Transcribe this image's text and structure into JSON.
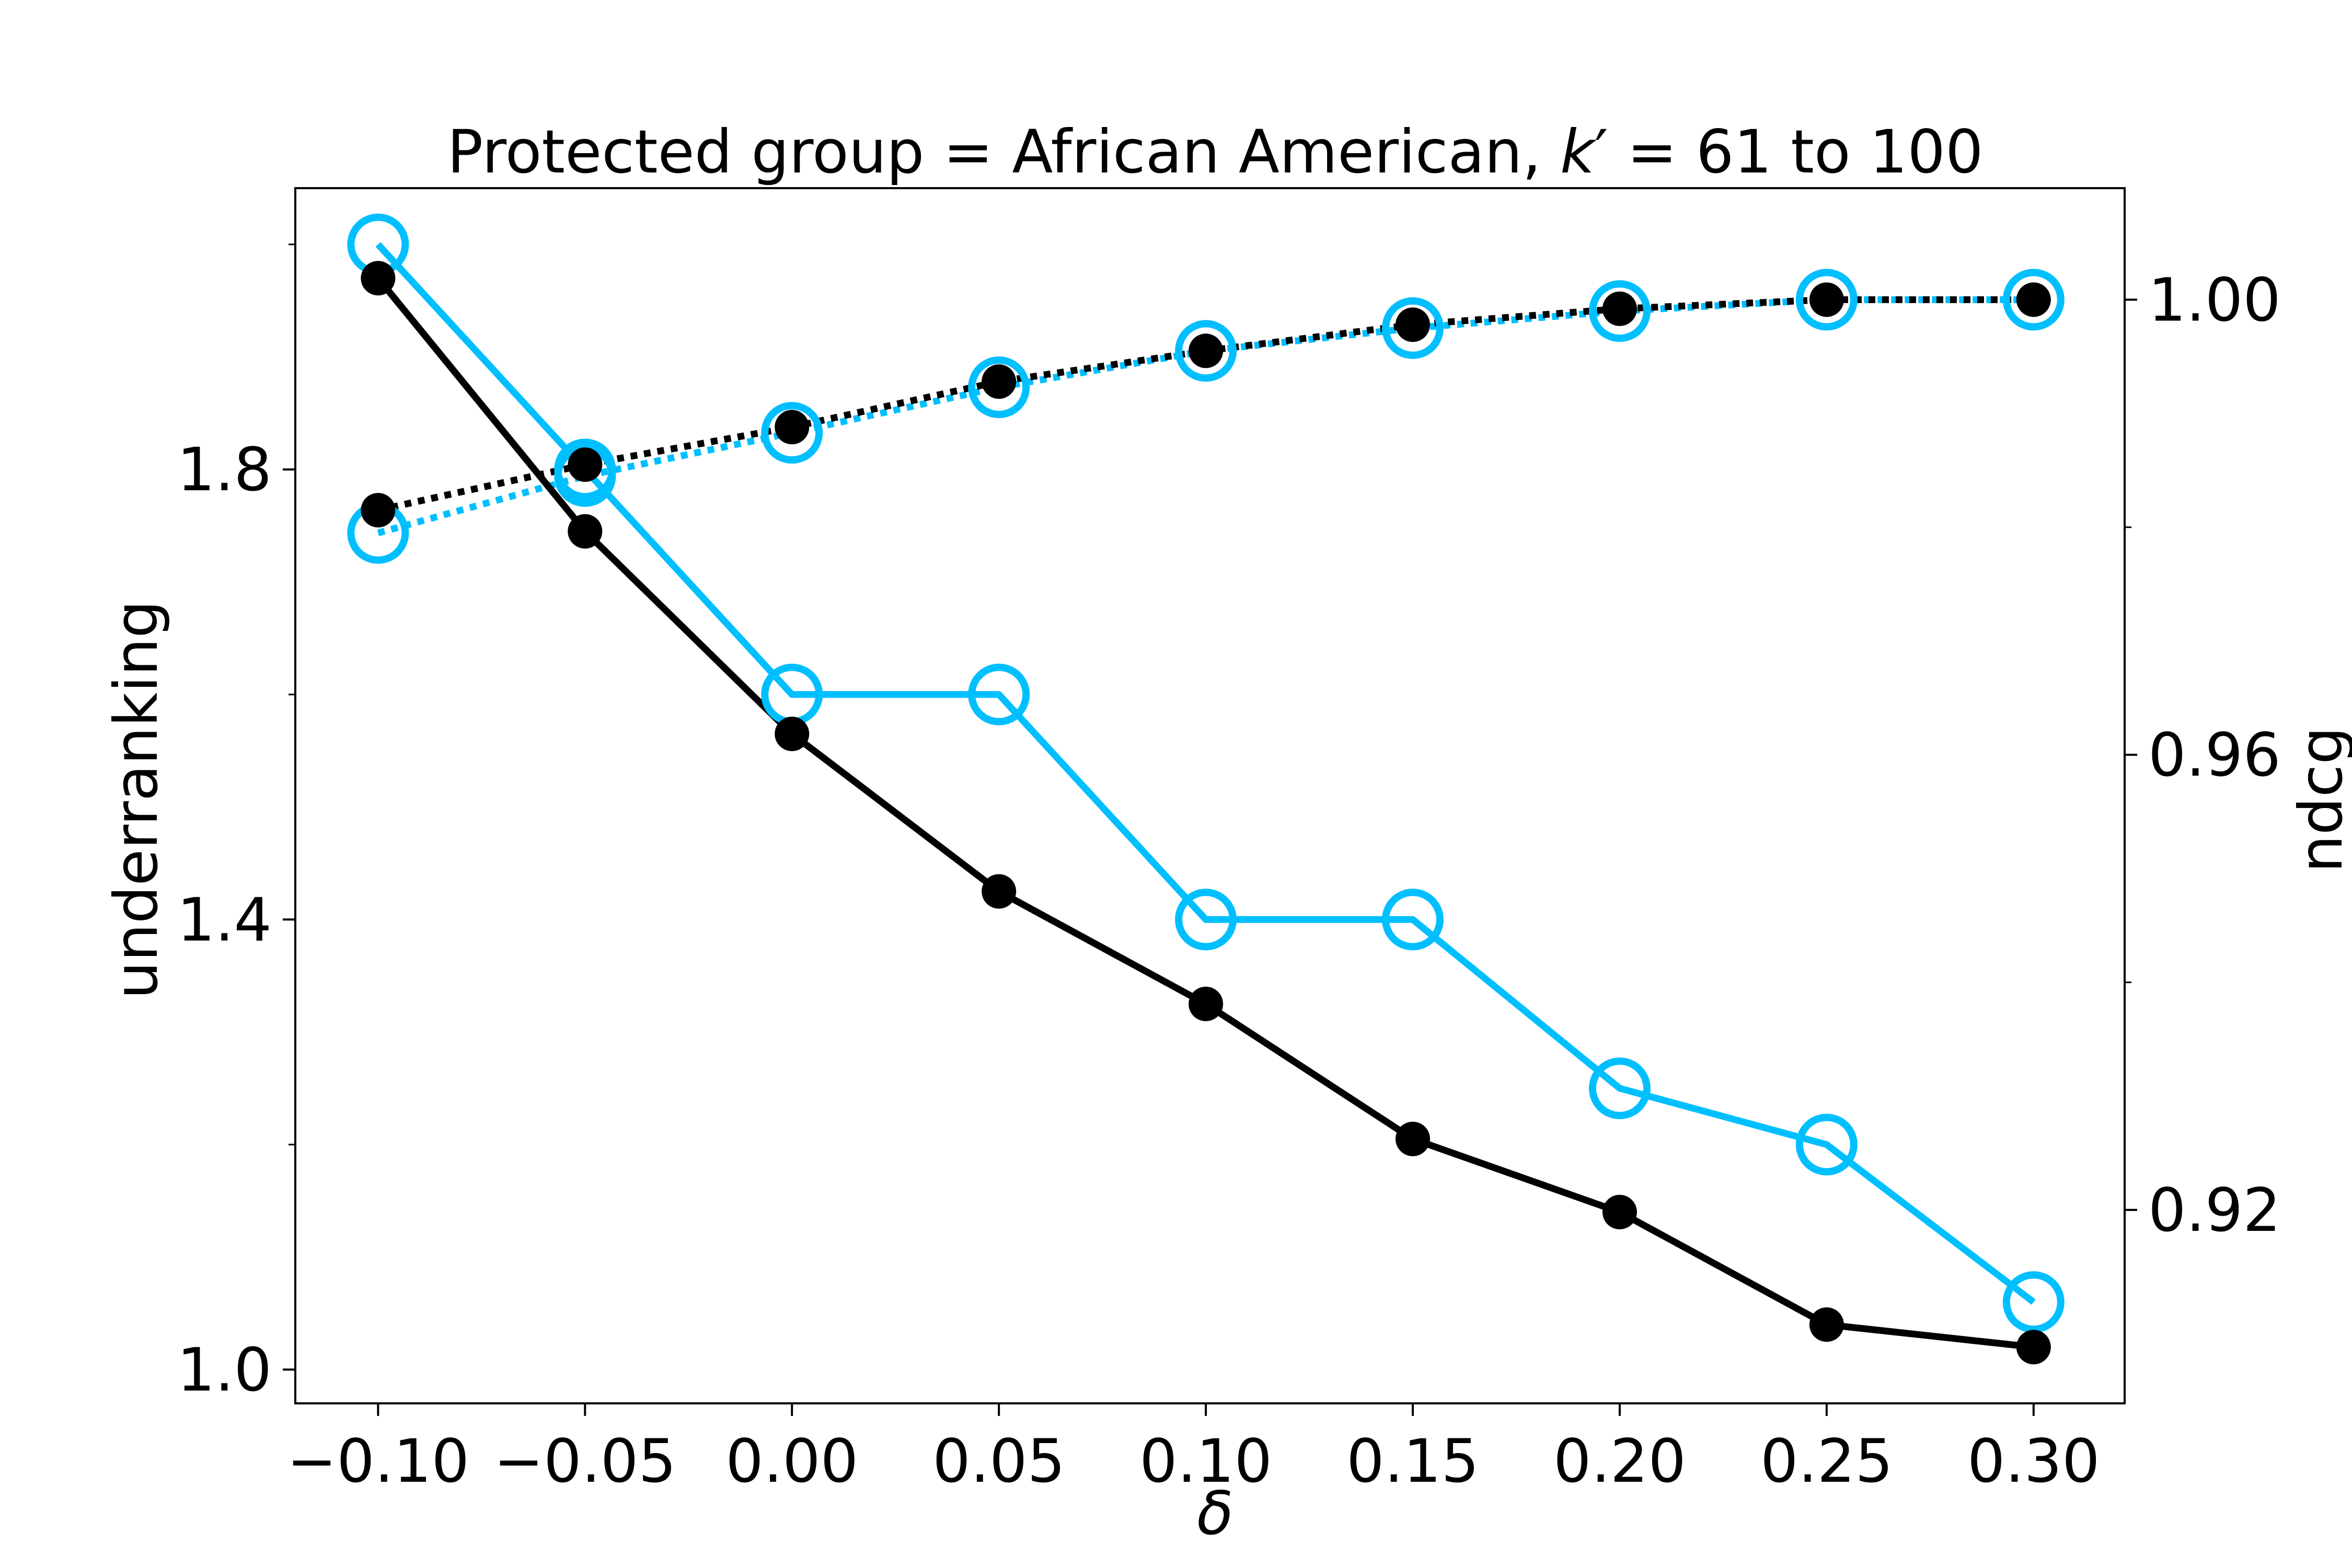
{
  "chart_data": {
    "type": "line",
    "title": "Protected group = African American, k′ = 61 to 100",
    "xlabel": "δ",
    "ylabel_left": "underranking",
    "ylabel_right": "ndcg",
    "x": [
      -0.1,
      -0.05,
      0.0,
      0.05,
      0.1,
      0.15,
      0.2,
      0.25,
      0.3
    ],
    "x_tick_labels": [
      "−0.10",
      "−0.05",
      "0.00",
      "0.05",
      "0.10",
      "0.15",
      "0.20",
      "0.25",
      "0.30"
    ],
    "xlim": [
      -0.12,
      0.322
    ],
    "left_axis": {
      "ylim": [
        0.97,
        2.05
      ],
      "major_ticks": [
        1.0,
        1.4,
        1.8
      ],
      "major_tick_labels": [
        "1.0",
        "1.4",
        "1.8"
      ],
      "minor_ticks": [
        1.2,
        1.6,
        2.0
      ]
    },
    "right_axis": {
      "ylim": [
        0.903,
        1.0098
      ],
      "major_ticks": [
        0.92,
        0.96,
        1.0
      ],
      "major_tick_labels": [
        "0.92",
        "0.96",
        "1.00"
      ],
      "minor_ticks": [
        0.94,
        0.98
      ]
    },
    "series": [
      {
        "axis": "left",
        "style": "solid",
        "marker": "filled-circle",
        "color": "#000000",
        "values": [
          1.97,
          1.745,
          1.565,
          1.425,
          1.325,
          1.205,
          1.14,
          1.04,
          1.02
        ]
      },
      {
        "axis": "left",
        "style": "solid",
        "marker": "open-circle",
        "color": "#00BFFF",
        "values": [
          2.0,
          1.8,
          1.6,
          1.6,
          1.4,
          1.4,
          1.25,
          1.2,
          1.06
        ]
      },
      {
        "axis": "right",
        "style": "dotted",
        "marker": "filled-circle",
        "color": "#000000",
        "values": [
          0.9815,
          0.9855,
          0.9888,
          0.9928,
          0.9955,
          0.9978,
          0.9992,
          1.0,
          1.0
        ]
      },
      {
        "axis": "right",
        "style": "dotted",
        "marker": "open-circle",
        "color": "#00BFFF",
        "values": [
          0.9795,
          0.9845,
          0.9883,
          0.9923,
          0.9955,
          0.9975,
          0.999,
          1.0,
          1.0
        ]
      }
    ]
  }
}
